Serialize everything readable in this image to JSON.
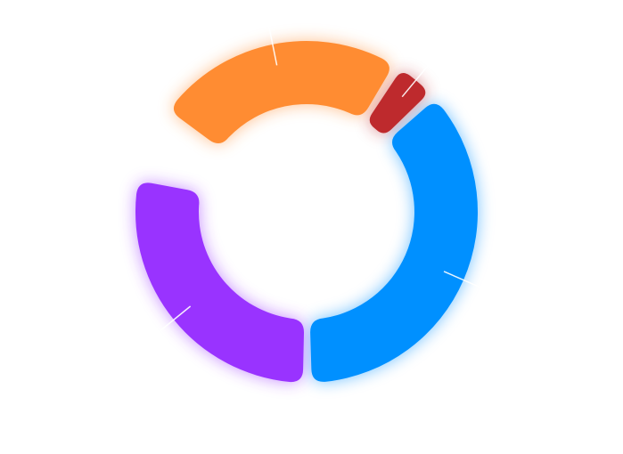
{
  "chart_data": {
    "type": "pie",
    "variant": "donut",
    "legend": "none",
    "labels_visible": false,
    "title": "",
    "slices": [
      {
        "value": 23,
        "color": "#FF8C32"
      },
      {
        "value": 4,
        "color": "#BE2A2D"
      },
      {
        "value": 35,
        "color": "#0090FF"
      },
      {
        "value": 27,
        "color": "#9933FF"
      }
    ]
  }
}
